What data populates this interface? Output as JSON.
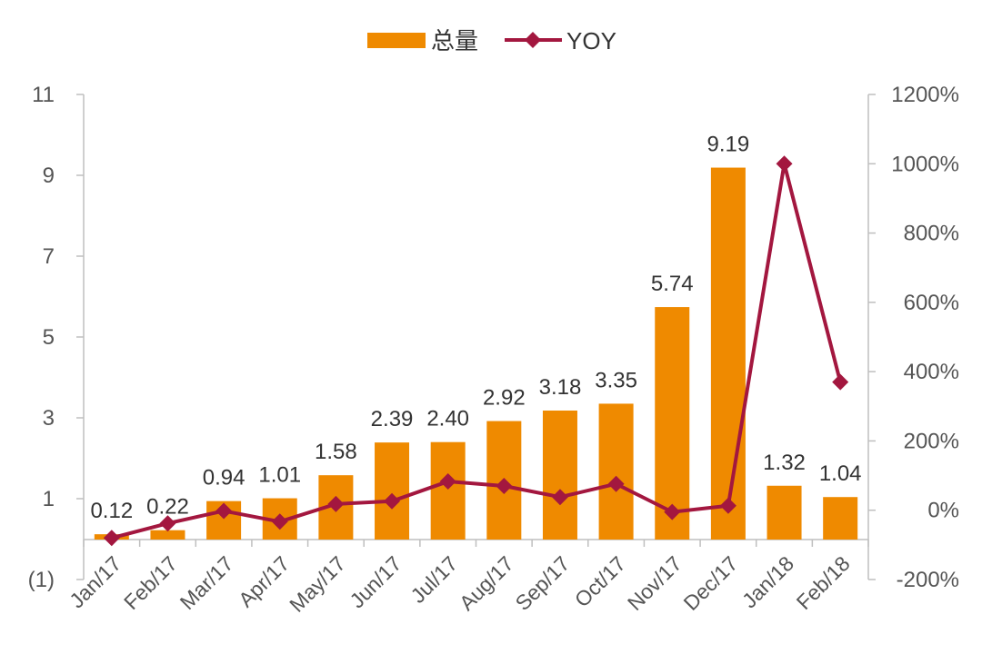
{
  "chart_data": {
    "type": "bar+line",
    "categories": [
      "Jan/17",
      "Feb/17",
      "Mar/17",
      "Apr/17",
      "May/17",
      "Jun/17",
      "Jul/17",
      "Aug/17",
      "Sep/17",
      "Oct/17",
      "Nov/17",
      "Dec/17",
      "Jan/18",
      "Feb/18"
    ],
    "series": [
      {
        "name": "总量",
        "type": "bar",
        "axis": "left",
        "color": "#ef8a00",
        "values": [
          0.12,
          0.22,
          0.94,
          1.01,
          1.58,
          2.39,
          2.4,
          2.92,
          3.18,
          3.35,
          5.74,
          9.19,
          1.32,
          1.04
        ],
        "labels": [
          "0.12",
          "0.22",
          "0.94",
          "1.01",
          "1.58",
          "2.39",
          "2.40",
          "2.92",
          "3.18",
          "3.35",
          "5.74",
          "9.19",
          "1.32",
          "1.04"
        ]
      },
      {
        "name": "YOY",
        "type": "line",
        "axis": "right",
        "color": "#a3173f",
        "marker": "diamond",
        "values": [
          -80,
          -38,
          -2,
          -33,
          18,
          26,
          83,
          70,
          38,
          76,
          -5,
          13,
          1000,
          370
        ]
      }
    ],
    "y_left": {
      "min": -1,
      "max": 11,
      "ticks": [
        -1,
        1,
        3,
        5,
        7,
        9,
        11
      ],
      "tick_labels": [
        "(1)",
        "1",
        "3",
        "5",
        "7",
        "9",
        "11"
      ]
    },
    "y_right": {
      "min": -200,
      "max": 1200,
      "ticks": [
        -200,
        0,
        200,
        400,
        600,
        800,
        1000,
        1200
      ],
      "tick_labels": [
        "-200%",
        "0%",
        "200%",
        "400%",
        "600%",
        "800%",
        "1000%",
        "1200%"
      ]
    },
    "legend_position": "top-center",
    "grid": false
  }
}
